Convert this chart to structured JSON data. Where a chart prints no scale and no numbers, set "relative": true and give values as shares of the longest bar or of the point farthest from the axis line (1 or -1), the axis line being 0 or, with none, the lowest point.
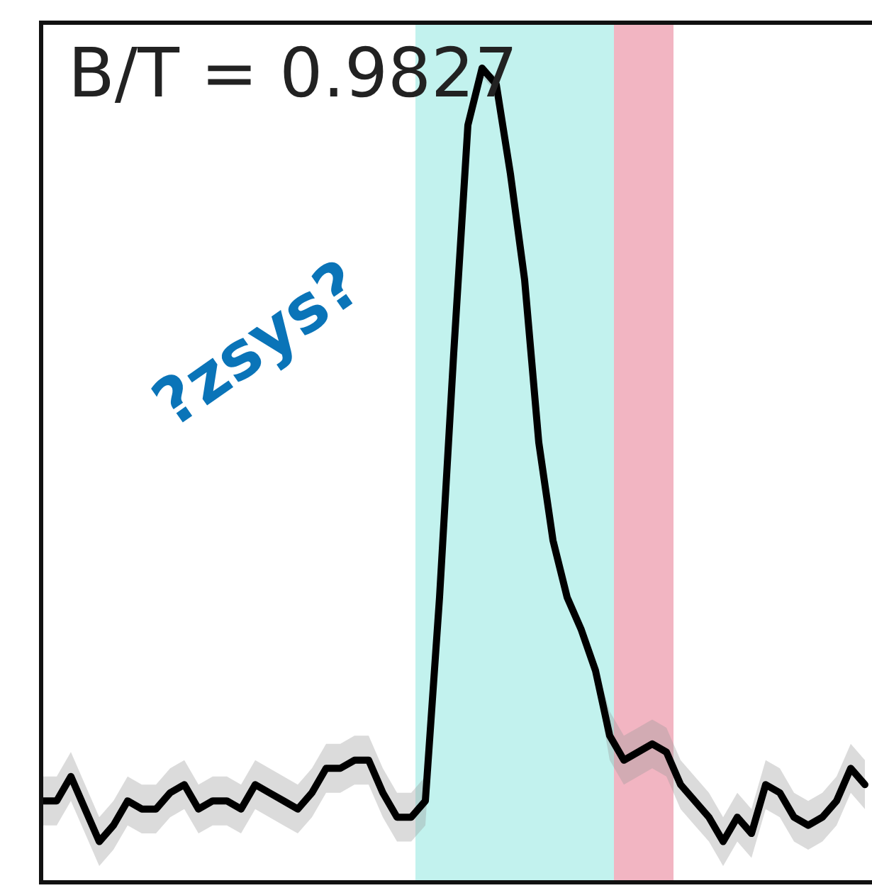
{
  "chart_data": {
    "type": "line",
    "relative": true,
    "categories": [
      null,
      null,
      null,
      null,
      null,
      null,
      null,
      null,
      null,
      null,
      null,
      null,
      null,
      null,
      null,
      null,
      null,
      null,
      null,
      null,
      null,
      null,
      null,
      null,
      null,
      null,
      null,
      null,
      null,
      null,
      null,
      null,
      null,
      null,
      null,
      null,
      null,
      null,
      null,
      null,
      null,
      null,
      null,
      null,
      null,
      null,
      null,
      null,
      null,
      null,
      null,
      null,
      null,
      null,
      null,
      null,
      null,
      null,
      null
    ],
    "series": [
      {
        "color": "#000000",
        "values": [
          0.1,
          0.1,
          0.13,
          0.09,
          0.05,
          0.07,
          0.1,
          0.09,
          0.09,
          0.11,
          0.12,
          0.09,
          0.1,
          0.1,
          0.09,
          0.12,
          0.11,
          0.1,
          0.09,
          0.11,
          0.14,
          0.14,
          0.15,
          0.15,
          0.11,
          0.08,
          0.08,
          0.1,
          0.35,
          0.65,
          0.93,
          1,
          0.98,
          0.87,
          0.74,
          0.54,
          0.42,
          0.35,
          0.31,
          0.26,
          0.18,
          0.15,
          0.16,
          0.17,
          0.16,
          0.12,
          0.1,
          0.08,
          0.05,
          0.08,
          0.06,
          0.12,
          0.11,
          0.08,
          0.07,
          0.08,
          0.1,
          0.14,
          0.12
        ],
        "lower": [
          0.07,
          0.07,
          0.1,
          0.06,
          0.02,
          0.04,
          0.07,
          0.06,
          0.06,
          0.08,
          0.09,
          0.06,
          0.07,
          0.07,
          0.06,
          0.09,
          0.08,
          0.07,
          0.06,
          0.08,
          0.11,
          0.11,
          0.12,
          0.12,
          0.08,
          0.05,
          0.05,
          0.07,
          0.34,
          0.64,
          0.92,
          0.99,
          0.97,
          0.86,
          0.73,
          0.53,
          0.41,
          0.34,
          0.3,
          0.25,
          0.15,
          0.12,
          0.13,
          0.14,
          0.13,
          0.09,
          0.07,
          0.05,
          0.02,
          0.05,
          0.03,
          0.09,
          0.08,
          0.05,
          0.04,
          0.05,
          0.07,
          0.11,
          0.09
        ],
        "upper": [
          0.13,
          0.13,
          0.16,
          0.12,
          0.08,
          0.1,
          0.13,
          0.12,
          0.12,
          0.14,
          0.15,
          0.12,
          0.13,
          0.13,
          0.12,
          0.15,
          0.14,
          0.13,
          0.12,
          0.14,
          0.17,
          0.17,
          0.18,
          0.18,
          0.14,
          0.11,
          0.11,
          0.13,
          0.36,
          0.66,
          0.94,
          1,
          0.99,
          0.88,
          0.75,
          0.55,
          0.43,
          0.36,
          0.32,
          0.27,
          0.21,
          0.18,
          0.19,
          0.2,
          0.19,
          0.15,
          0.13,
          0.11,
          0.08,
          0.11,
          0.09,
          0.15,
          0.14,
          0.11,
          0.1,
          0.11,
          0.13,
          0.17,
          0.15
        ]
      }
    ],
    "annotations": [
      "B/T = 0.9827",
      "?zsys?"
    ]
  }
}
